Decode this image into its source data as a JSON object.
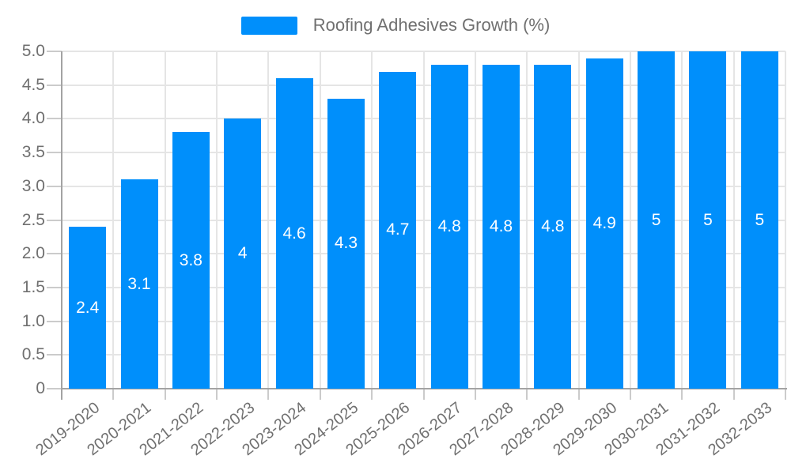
{
  "chart_data": {
    "type": "bar",
    "series_name": "Roofing Adhesives Growth (%)",
    "legend_position": "top",
    "categories": [
      "2019-2020",
      "2020-2021",
      "2021-2022",
      "2022-2023",
      "2023-2024",
      "2024-2025",
      "2025-2026",
      "2026-2027",
      "2027-2028",
      "2028-2029",
      "2029-2030",
      "2030-2031",
      "2031-2032",
      "2032-2033"
    ],
    "values": [
      2.4,
      3.1,
      3.8,
      4,
      4.6,
      4.3,
      4.7,
      4.8,
      4.8,
      4.8,
      4.9,
      5,
      5,
      5
    ],
    "value_labels": [
      "2.4",
      "3.1",
      "3.8",
      "4",
      "4.6",
      "4.3",
      "4.7",
      "4.8",
      "4.8",
      "4.8",
      "4.9",
      "5",
      "5",
      "5"
    ],
    "xlabel": "",
    "ylabel": "",
    "ylim": [
      0,
      5
    ],
    "y_tick_values": [
      0,
      0.5,
      1,
      1.5,
      2,
      2.5,
      3,
      3.5,
      4,
      4.5,
      5
    ],
    "y_tick_labels": [
      "0",
      "0.5",
      "1.0",
      "1.5",
      "2.0",
      "2.5",
      "3.0",
      "3.5",
      "4.0",
      "4.5",
      "5.0"
    ],
    "grid": true,
    "colors": {
      "bar": "#008FFB",
      "value_label": "#ffffff",
      "axis_label": "#707070",
      "legend_text": "#707070",
      "gridline": "#e5e5e5",
      "tick": "#cbcbcb",
      "axis_line": "#a3a3a3",
      "background": "#ffffff"
    }
  }
}
